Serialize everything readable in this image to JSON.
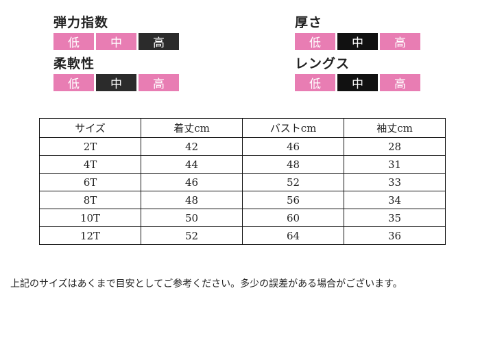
{
  "attributes": [
    {
      "id": "elasticity",
      "title": "弾力指数",
      "levels": [
        "低",
        "中",
        "高"
      ],
      "selected": "高"
    },
    {
      "id": "thickness",
      "title": "厚さ",
      "levels": [
        "低",
        "中",
        "高"
      ],
      "selected": "中"
    },
    {
      "id": "softness",
      "title": "柔軟性",
      "levels": [
        "低",
        "中",
        "高"
      ],
      "selected": "中"
    },
    {
      "id": "length",
      "title": "レングス",
      "levels": [
        "低",
        "中",
        "高"
      ],
      "selected": "中"
    }
  ],
  "size_table": {
    "headers": [
      "サイズ",
      "着丈cm",
      "バストcm",
      "袖丈cm"
    ],
    "rows": [
      [
        "2T",
        "42",
        "46",
        "28"
      ],
      [
        "4T",
        "44",
        "48",
        "31"
      ],
      [
        "6T",
        "46",
        "52",
        "33"
      ],
      [
        "8T",
        "48",
        "56",
        "34"
      ],
      [
        "10T",
        "50",
        "60",
        "35"
      ],
      [
        "12T",
        "52",
        "64",
        "36"
      ]
    ]
  },
  "note": "上記のサイズはあくまで目安としてご参考ください。多少の誤差がある場合がございます。",
  "colors": {
    "unselected": "#e87db3",
    "selected": "#2b2b2b"
  }
}
